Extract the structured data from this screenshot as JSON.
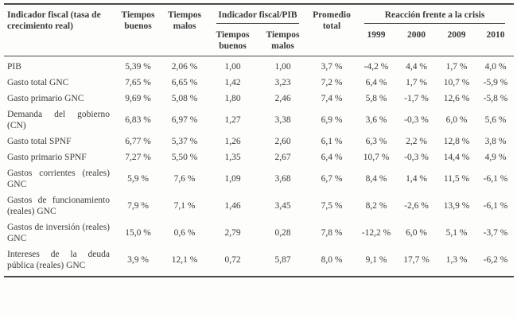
{
  "table": {
    "header": {
      "indicator": "Indicador fiscal (tasa de crecimiento real)",
      "good_times": "Tiempos buenos",
      "bad_times": "Tiempos malos",
      "group_fiscal_pib": "Indicador fiscal/PIB",
      "sub_good_times": "Tiempos buenos",
      "sub_bad_times": "Tiempos malos",
      "average_total": "Promedio total",
      "group_crisis": "Reacción frente a la crisis",
      "years": [
        "1999",
        "2000",
        "2009",
        "2010"
      ]
    },
    "rows": [
      {
        "label": "PIB",
        "values": [
          "5,39 %",
          "2,06 %",
          "1,00",
          "1,00",
          "3,7 %",
          "-4,2 %",
          "4,4 %",
          "1,7 %",
          "4,0 %"
        ]
      },
      {
        "label": "Gasto total GNC",
        "values": [
          "7,65 %",
          "6,65 %",
          "1,42",
          "3,23",
          "7,2 %",
          "6,4 %",
          "1,7 %",
          "10,7 %",
          "-5,9 %"
        ]
      },
      {
        "label": "Gasto primario GNC",
        "values": [
          "9,69 %",
          "5,08 %",
          "1,80",
          "2,46",
          "7,4 %",
          "5,8 %",
          "-1,7 %",
          "12,6 %",
          "-5,8 %"
        ]
      },
      {
        "label": "Demanda del gobierno (CN)",
        "values": [
          "6,83 %",
          "6,97 %",
          "1,27",
          "3,38",
          "6,9 %",
          "3,6 %",
          "-0,3 %",
          "6,0 %",
          "5,6 %"
        ]
      },
      {
        "label": "Gasto total SPNF",
        "values": [
          "6,77 %",
          "5,37 %",
          "1,26",
          "2,60",
          "6,1 %",
          "6,3 %",
          "2,2 %",
          "12,8 %",
          "3,8 %"
        ]
      },
      {
        "label": "Gasto primario SPNF",
        "values": [
          "7,27 %",
          "5,50 %",
          "1,35",
          "2,67",
          "6,4 %",
          "10,7 %",
          "-0,3 %",
          "14,4 %",
          "4,9 %"
        ]
      },
      {
        "label": "Gastos corrientes (reales) GNC",
        "values": [
          "5,9 %",
          "7,6 %",
          "1,09",
          "3,68",
          "6,7 %",
          "8,4 %",
          "1,4 %",
          "11,5 %",
          "-6,1 %"
        ]
      },
      {
        "label": "Gastos de funcionamiento (reales) GNC",
        "values": [
          "7,9 %",
          "7,1 %",
          "1,46",
          "3,45",
          "7,5 %",
          "8,2 %",
          "-2,6 %",
          "13,9 %",
          "-6,1 %"
        ]
      },
      {
        "label": "Gastos de inversión (reales) GNC",
        "values": [
          "15,0 %",
          "0,6 %",
          "2,79",
          "0,28",
          "7,8 %",
          "-12,2 %",
          "6,0 %",
          "5,1 %",
          "-3,7 %"
        ]
      },
      {
        "label": "Intereses de la deuda pública (reales) GNC",
        "values": [
          "3,9 %",
          "12,1 %",
          "0,72",
          "5,87",
          "8,0 %",
          "9,1 %",
          "17,7 %",
          "1,3 %",
          "-6,2 %"
        ]
      }
    ]
  },
  "colors": {
    "text": "#3a3a3a",
    "rule": "#4a4a4a",
    "background": "#fdfdfc"
  }
}
